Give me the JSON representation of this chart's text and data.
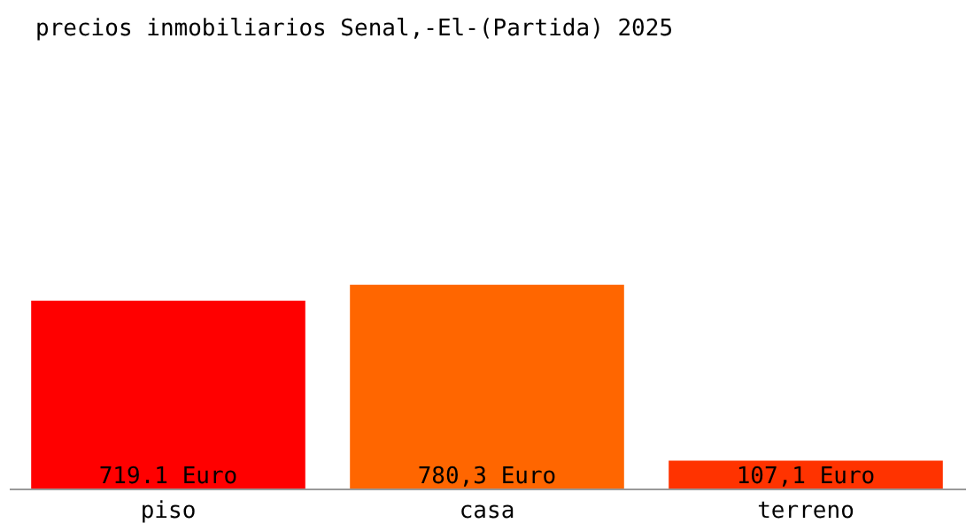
{
  "chart_data": {
    "type": "bar",
    "title": "precios inmobiliarios Senal,-El-(Partida) 2025",
    "categories": [
      "piso",
      "casa",
      "terreno"
    ],
    "values": [
      719.1,
      780.3,
      107.1
    ],
    "colors": [
      "#ff0000",
      "#ff6600",
      "#ff3300"
    ],
    "value_labels": [
      "719.1 Euro",
      "780,3 Euro",
      "107,1 Euro"
    ],
    "tick_labels": "x",
    "grid": false
  }
}
